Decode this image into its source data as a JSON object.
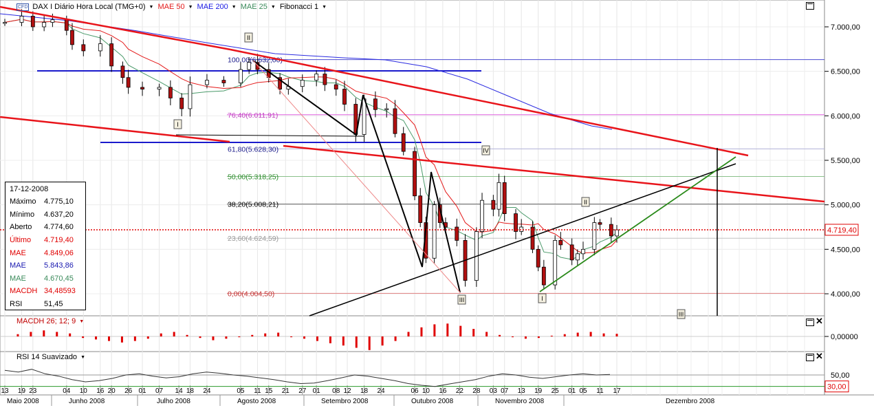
{
  "toolbar": {
    "symbol_badge": "CFD",
    "instrument": "DAX I Diário Hora Local (TMG+0)",
    "indicators": [
      {
        "label": "MAE 50",
        "color": "#e41a1a"
      },
      {
        "label": "MAE 200",
        "color": "#1a1ae4"
      },
      {
        "label": "MAE 25",
        "color": "#3a8a5a"
      },
      {
        "label": "Fibonacci 1",
        "color": "#000000"
      }
    ]
  },
  "info_panel": {
    "date": "17-12-2008",
    "rows": [
      {
        "label": "Máximo",
        "value": "4.775,10",
        "color": "#000000"
      },
      {
        "label": "Mínimo",
        "value": "4.637,20",
        "color": "#000000"
      },
      {
        "label": "Aberto",
        "value": "4.774,60",
        "color": "#000000"
      },
      {
        "label": "Último",
        "value": "4.719,40",
        "color": "#e00000"
      },
      {
        "label": "MAE",
        "value": "4.849,06",
        "color": "#e00000"
      },
      {
        "label": "MAE",
        "value": "5.843,86",
        "color": "#1a1ab0"
      },
      {
        "label": "MAE",
        "value": "4.670,45",
        "color": "#3a8a5a"
      },
      {
        "label": "MACDH",
        "value": "34,48593",
        "color": "#e00000"
      },
      {
        "label": "RSI",
        "value": "51,45",
        "color": "#000000"
      }
    ]
  },
  "macd_panel": {
    "label": "MACDH 26; 12; 9",
    "axis_label": "0,00000"
  },
  "rsi_panel": {
    "label": "RSI 14 Suavizado",
    "axis_labels": [
      "50,00",
      "30,00"
    ]
  },
  "colors": {
    "up": "#ffffff",
    "down": "#b01010",
    "mae50": "#e41a1a",
    "mae200": "#2a2ae0",
    "mae25": "#4a9a6a",
    "trend_red": "#e8141a",
    "fib_blue": "#1a1acc",
    "green_line": "#2a8a1a",
    "price_marker": "#e00000",
    "fib_pink": "#e060e0"
  },
  "chart_data": [
    {
      "type": "candlestick",
      "title": "",
      "x_axis": {
        "day_ticks": [
          "13",
          "19",
          "23",
          "04",
          "10",
          "16",
          "20",
          "26",
          "01",
          "07",
          "14",
          "18",
          "24",
          "05",
          "11",
          "15",
          "21",
          "27",
          "01",
          "08",
          "12",
          "18",
          "24",
          "06",
          "10",
          "16",
          "22",
          "28",
          "03",
          "07",
          "13",
          "19",
          "25",
          "01",
          "05",
          "11",
          "17"
        ],
        "month_labels": [
          "Maio 2008",
          "Junho 2008",
          "Julho 2008",
          "Agosto 2008",
          "Setembro 2008",
          "Outubro 2008",
          "Novembro 2008",
          "Dezembro 2008"
        ],
        "range": [
          "2008-05-13",
          "2008-12-31"
        ]
      },
      "y_axis": {
        "ticks": [
          "4.000,00",
          "4.500,00",
          "5.000,00",
          "5.500,00",
          "6.000,00",
          "6.500,00",
          "7.000,00"
        ],
        "range": [
          3750,
          7300
        ]
      },
      "last_price": {
        "value": 4719.4,
        "label": "4.719,40"
      },
      "candles_sampled": [
        {
          "d": "2008-05-13",
          "c": 7050
        },
        {
          "d": "2008-05-19",
          "c": 7120
        },
        {
          "d": "2008-05-23",
          "c": 7000
        },
        {
          "d": "2008-05-27",
          "c": 7050
        },
        {
          "d": "2008-05-30",
          "c": 7080
        },
        {
          "d": "2008-06-04",
          "c": 6960
        },
        {
          "d": "2008-06-06",
          "c": 6800
        },
        {
          "d": "2008-06-10",
          "c": 6730
        },
        {
          "d": "2008-06-16",
          "c": 6810
        },
        {
          "d": "2008-06-20",
          "c": 6560
        },
        {
          "d": "2008-06-24",
          "c": 6430
        },
        {
          "d": "2008-06-26",
          "c": 6320
        },
        {
          "d": "2008-07-01",
          "c": 6300
        },
        {
          "d": "2008-07-07",
          "c": 6320
        },
        {
          "d": "2008-07-11",
          "c": 6200
        },
        {
          "d": "2008-07-15",
          "c": 6080
        },
        {
          "d": "2008-07-18",
          "c": 6350
        },
        {
          "d": "2008-07-24",
          "c": 6400
        },
        {
          "d": "2008-07-30",
          "c": 6370
        },
        {
          "d": "2008-08-05",
          "c": 6520
        },
        {
          "d": "2008-08-08",
          "c": 6600
        },
        {
          "d": "2008-08-11",
          "c": 6520
        },
        {
          "d": "2008-08-15",
          "c": 6430
        },
        {
          "d": "2008-08-19",
          "c": 6300
        },
        {
          "d": "2008-08-22",
          "c": 6330
        },
        {
          "d": "2008-08-27",
          "c": 6400
        },
        {
          "d": "2008-09-01",
          "c": 6470
        },
        {
          "d": "2008-09-04",
          "c": 6350
        },
        {
          "d": "2008-09-08",
          "c": 6300
        },
        {
          "d": "2008-09-11",
          "c": 6130
        },
        {
          "d": "2008-09-15",
          "c": 5790
        },
        {
          "d": "2008-09-18",
          "c": 6190
        },
        {
          "d": "2008-09-22",
          "c": 6070
        },
        {
          "d": "2008-09-26",
          "c": 6080
        },
        {
          "d": "2008-09-29",
          "c": 5800
        },
        {
          "d": "2008-10-02",
          "c": 5600
        },
        {
          "d": "2008-10-06",
          "c": 5100
        },
        {
          "d": "2008-10-08",
          "c": 4800
        },
        {
          "d": "2008-10-10",
          "c": 4400
        },
        {
          "d": "2008-10-13",
          "c": 5000
        },
        {
          "d": "2008-10-15",
          "c": 4800
        },
        {
          "d": "2008-10-17",
          "c": 4750
        },
        {
          "d": "2008-10-21",
          "c": 4600
        },
        {
          "d": "2008-10-24",
          "c": 4150
        },
        {
          "d": "2008-10-28",
          "c": 4700
        },
        {
          "d": "2008-10-30",
          "c": 5050
        },
        {
          "d": "2008-11-03",
          "c": 4950
        },
        {
          "d": "2008-11-05",
          "c": 5250
        },
        {
          "d": "2008-11-07",
          "c": 4900
        },
        {
          "d": "2008-11-11",
          "c": 4700
        },
        {
          "d": "2008-11-13",
          "c": 4750
        },
        {
          "d": "2008-11-17",
          "c": 4500
        },
        {
          "d": "2008-11-19",
          "c": 4300
        },
        {
          "d": "2008-11-21",
          "c": 4100
        },
        {
          "d": "2008-11-25",
          "c": 4600
        },
        {
          "d": "2008-11-27",
          "c": 4550
        },
        {
          "d": "2008-12-01",
          "c": 4380
        },
        {
          "d": "2008-12-03",
          "c": 4450
        },
        {
          "d": "2008-12-05",
          "c": 4500
        },
        {
          "d": "2008-12-09",
          "c": 4800
        },
        {
          "d": "2008-12-11",
          "c": 4780
        },
        {
          "d": "2008-12-15",
          "c": 4650
        },
        {
          "d": "2008-12-17",
          "c": 4719
        }
      ],
      "fibonacci_levels": [
        {
          "label": "100,00(6.632,00)",
          "value": 6632.0,
          "color": "#1a1a8a"
        },
        {
          "label": "76,40(6.011,91)",
          "value": 6011.91,
          "color": "#c040c0"
        },
        {
          "label": "61,80(5.628,30)",
          "value": 5628.3,
          "color": "#1a1a8a"
        },
        {
          "label": "50,00(5.318,25)",
          "value": 5318.25,
          "color": "#2a8a2a"
        },
        {
          "label": "38,20(5.008,21)",
          "value": 5008.21,
          "color": "#000000"
        },
        {
          "label": "23,60(4.624,59)",
          "value": 4624.59,
          "color": "#9a9a9a"
        },
        {
          "label": "0,00(4.004,50)",
          "value": 4004.5,
          "color": "#c03030"
        }
      ],
      "wave_labels": [
        "I",
        "II",
        "III",
        "IV",
        "I",
        "II",
        "III"
      ]
    },
    {
      "type": "bar",
      "name": "MACDH 26; 12; 9",
      "y_axis": {
        "ticks": [
          "0,00000"
        ]
      },
      "values_sampled": [
        0,
        30,
        60,
        80,
        60,
        40,
        -20,
        -40,
        -60,
        -80,
        -60,
        -30,
        40,
        60,
        20,
        -20,
        -50,
        -30,
        -10,
        20,
        40,
        50,
        -10,
        -30,
        -60,
        -90,
        -120,
        -150,
        -180,
        -120,
        -60,
        60,
        120,
        160,
        170,
        140,
        100,
        60,
        20,
        -10,
        -30,
        -20,
        10,
        30,
        50,
        60,
        40,
        35
      ]
    },
    {
      "type": "line",
      "name": "RSI 14 Suavizado",
      "y_axis": {
        "ticks": [
          "50,00",
          "30,00"
        ]
      },
      "values_sampled": [
        58,
        55,
        60,
        52,
        48,
        42,
        38,
        40,
        44,
        50,
        52,
        48,
        45,
        47,
        52,
        55,
        53,
        50,
        48,
        45,
        42,
        38,
        35,
        36,
        40,
        45,
        50,
        48,
        44,
        40,
        35,
        32,
        30,
        34,
        38,
        42,
        48,
        52,
        50,
        46,
        44,
        47,
        50,
        52,
        50,
        51
      ]
    }
  ]
}
